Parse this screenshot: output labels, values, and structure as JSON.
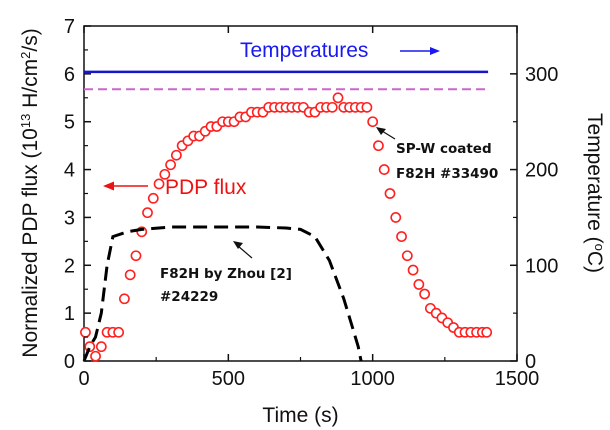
{
  "chart_data": {
    "type": "scatter",
    "title": "",
    "xlabel": "Time (s)",
    "ylabel_left": "Normalized PDP flux (10^13 H/cm^2/s)",
    "ylabel_right": "Temperature (°C)",
    "xlim": [
      0,
      1500
    ],
    "ylim_left": [
      0,
      7
    ],
    "ylim_right": [
      0,
      350
    ],
    "x_ticks": [
      "0",
      "500",
      "1000",
      "1500"
    ],
    "y_left_ticks": [
      "0",
      "1",
      "2",
      "3",
      "4",
      "5",
      "6",
      "7"
    ],
    "y_right_ticks": [
      "0",
      "100",
      "200",
      "300"
    ],
    "grid": false,
    "series": [
      {
        "name": "",
        "style": "open-circles",
        "color": "#ff2020",
        "axis": "left",
        "x": [
          5,
          20,
          40,
          60,
          80,
          100,
          120,
          140,
          160,
          180,
          200,
          220,
          240,
          260,
          280,
          300,
          320,
          340,
          360,
          380,
          400,
          420,
          440,
          460,
          480,
          500,
          520,
          540,
          560,
          580,
          600,
          620,
          640,
          660,
          680,
          700,
          720,
          740,
          760,
          780,
          800,
          820,
          840,
          860,
          880,
          900,
          920,
          940,
          960,
          980,
          1000,
          1020,
          1040,
          1060,
          1080,
          1100,
          1120,
          1140,
          1160,
          1180,
          1200,
          1220,
          1240,
          1260,
          1280,
          1300,
          1320,
          1340,
          1360,
          1380,
          1395
        ],
        "y": [
          0.6,
          0.3,
          0.1,
          0.3,
          0.6,
          0.6,
          0.6,
          1.3,
          1.8,
          2.2,
          2.7,
          3.1,
          3.4,
          3.7,
          3.9,
          4.1,
          4.3,
          4.5,
          4.6,
          4.7,
          4.7,
          4.8,
          4.9,
          4.9,
          5.0,
          5.0,
          5.0,
          5.1,
          5.1,
          5.2,
          5.2,
          5.2,
          5.3,
          5.3,
          5.3,
          5.3,
          5.3,
          5.3,
          5.3,
          5.2,
          5.2,
          5.3,
          5.3,
          5.3,
          5.5,
          5.3,
          5.3,
          5.3,
          5.3,
          5.3,
          5.0,
          4.5,
          4.0,
          3.5,
          3.0,
          2.6,
          2.2,
          1.9,
          1.6,
          1.4,
          1.1,
          1.0,
          0.9,
          0.8,
          0.7,
          0.6,
          0.6,
          0.6,
          0.6,
          0.6,
          0.6
        ]
      },
      {
        "name": "",
        "style": "dashed-line",
        "color": "#000000",
        "axis": "left",
        "x": [
          0,
          20,
          40,
          60,
          80,
          100,
          150,
          200,
          300,
          400,
          500,
          600,
          700,
          750,
          800,
          850,
          900,
          930,
          950,
          960
        ],
        "y": [
          0,
          0.3,
          0.5,
          1.0,
          2.0,
          2.6,
          2.7,
          2.75,
          2.8,
          2.8,
          2.8,
          2.8,
          2.78,
          2.75,
          2.6,
          2.1,
          1.3,
          0.7,
          0.3,
          0
        ]
      },
      {
        "name": "",
        "style": "solid-line",
        "color": "#1515cc",
        "axis": "right",
        "x": [
          0,
          1400
        ],
        "y": [
          302,
          302
        ]
      },
      {
        "name": "",
        "style": "dashed-line",
        "color": "#cc66cc",
        "axis": "left",
        "x": [
          0,
          1400
        ],
        "y": [
          5.68,
          5.68
        ]
      }
    ],
    "annotations": [
      {
        "text": "Temperatures",
        "color": "#1a1aee"
      },
      {
        "text": "PDP flux",
        "color": "#ee1111"
      },
      {
        "text": "SP-W coated",
        "color": "#111111"
      },
      {
        "text": "F82H #33490",
        "color": "#111111"
      },
      {
        "text": "F82H by Zhou [2]",
        "color": "#111111"
      },
      {
        "text": "#24229",
        "color": "#111111"
      }
    ],
    "colors": {
      "axis": "#111111",
      "flux": "#ff2020",
      "temperature": "#1515cc",
      "reference": "#000000",
      "threshold": "#cc66cc"
    }
  }
}
